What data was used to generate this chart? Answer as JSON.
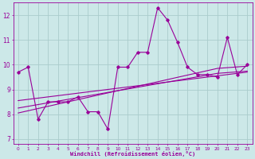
{
  "xlabel": "Windchill (Refroidissement éolien,°C)",
  "x": [
    0,
    1,
    2,
    3,
    4,
    5,
    6,
    7,
    8,
    9,
    10,
    11,
    12,
    13,
    14,
    15,
    16,
    17,
    18,
    19,
    20,
    21,
    22,
    23
  ],
  "y_main": [
    9.7,
    9.9,
    7.8,
    8.5,
    8.5,
    8.5,
    8.7,
    8.1,
    8.1,
    7.4,
    9.9,
    9.9,
    10.5,
    10.5,
    12.3,
    11.8,
    10.9,
    9.9,
    9.6,
    9.6,
    9.5,
    11.1,
    9.6,
    10.0
  ],
  "y_reg1": [
    8.05,
    8.14,
    8.23,
    8.32,
    8.41,
    8.5,
    8.59,
    8.68,
    8.77,
    8.86,
    8.95,
    9.04,
    9.13,
    9.22,
    9.31,
    9.4,
    9.49,
    9.58,
    9.67,
    9.76,
    9.85,
    9.88,
    9.91,
    9.94
  ],
  "y_reg2": [
    8.25,
    8.32,
    8.39,
    8.46,
    8.53,
    8.6,
    8.67,
    8.74,
    8.81,
    8.88,
    8.95,
    9.02,
    9.09,
    9.16,
    9.23,
    9.3,
    9.37,
    9.44,
    9.51,
    9.58,
    9.65,
    9.68,
    9.71,
    9.74
  ],
  "y_reg3": [
    8.55,
    8.6,
    8.65,
    8.7,
    8.75,
    8.8,
    8.85,
    8.9,
    8.95,
    9.0,
    9.05,
    9.1,
    9.15,
    9.2,
    9.25,
    9.3,
    9.35,
    9.4,
    9.45,
    9.5,
    9.55,
    9.6,
    9.65,
    9.7
  ],
  "line_color": "#990099",
  "bg_color": "#cce8e8",
  "grid_color": "#aacccc",
  "ylim": [
    6.8,
    12.5
  ],
  "yticks": [
    7,
    8,
    9,
    10,
    11,
    12
  ],
  "xlim": [
    -0.5,
    23.5
  ]
}
